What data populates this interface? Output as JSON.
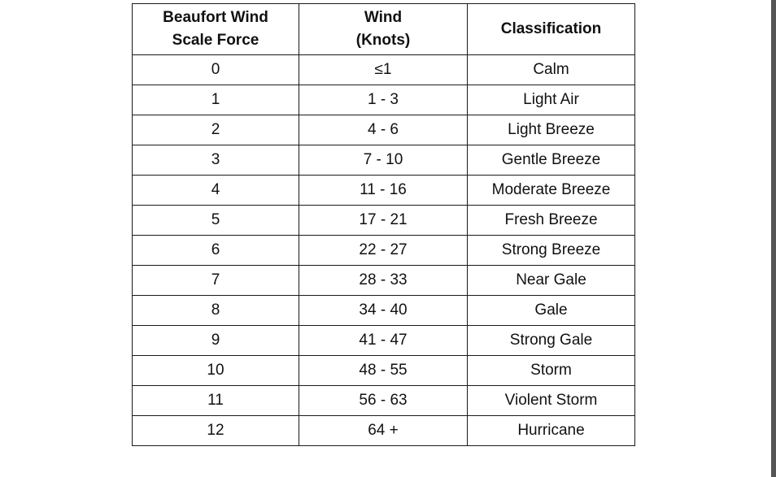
{
  "table": {
    "headers": {
      "force_line1": "Beaufort Wind",
      "force_line2": "Scale Force",
      "wind_line1": "Wind",
      "wind_line2": "(Knots)",
      "classification": "Classification"
    },
    "rows": [
      {
        "force": "0",
        "knots": "≤1",
        "classification": "Calm"
      },
      {
        "force": "1",
        "knots": "1 - 3",
        "classification": "Light Air"
      },
      {
        "force": "2",
        "knots": "4 - 6",
        "classification": "Light Breeze"
      },
      {
        "force": "3",
        "knots": "7 - 10",
        "classification": "Gentle Breeze"
      },
      {
        "force": "4",
        "knots": "11 - 16",
        "classification": "Moderate Breeze"
      },
      {
        "force": "5",
        "knots": "17 - 21",
        "classification": "Fresh Breeze"
      },
      {
        "force": "6",
        "knots": "22 - 27",
        "classification": "Strong Breeze"
      },
      {
        "force": "7",
        "knots": "28 - 33",
        "classification": "Near Gale"
      },
      {
        "force": "8",
        "knots": "34 - 40",
        "classification": "Gale"
      },
      {
        "force": "9",
        "knots": "41 - 47",
        "classification": "Strong Gale"
      },
      {
        "force": "10",
        "knots": "48 - 55",
        "classification": "Storm"
      },
      {
        "force": "11",
        "knots": "56 - 63",
        "classification": "Violent Storm"
      },
      {
        "force": "12",
        "knots": "64 +",
        "classification": "Hurricane"
      }
    ]
  },
  "colors": {
    "border": "#1a1a1a",
    "text": "#111111",
    "background": "#ffffff",
    "edge_bar": "#555555"
  }
}
